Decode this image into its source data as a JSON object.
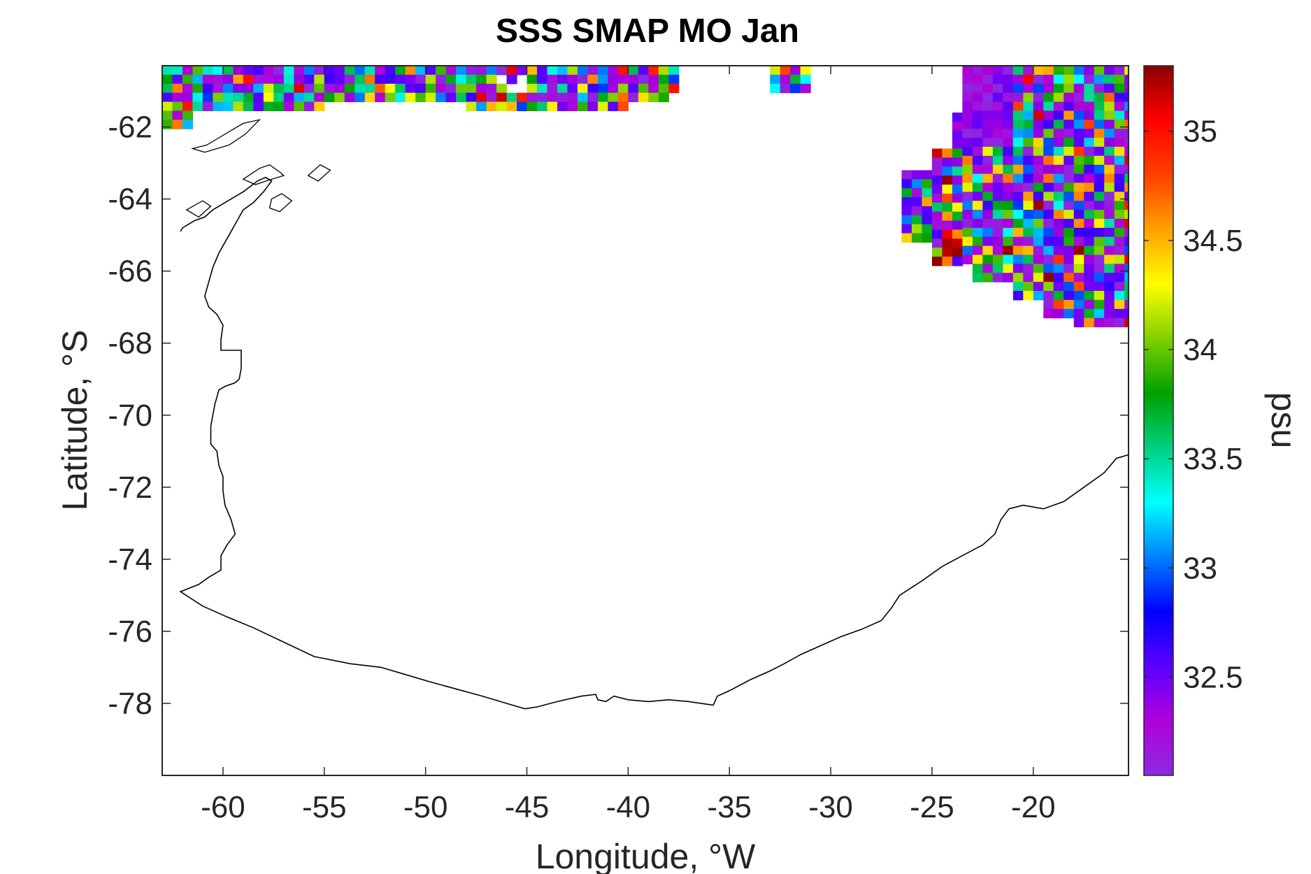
{
  "chart_data": {
    "type": "heatmap",
    "title": "SSS SMAP MO Jan",
    "xlabel": "Longitude, °W",
    "ylabel": "Latitude, °S",
    "colorbar_label": "psu",
    "xlim": [
      -63,
      -15.3
    ],
    "ylim": [
      -80,
      -60.3
    ],
    "x_ticks": [
      -60,
      -55,
      -50,
      -45,
      -40,
      -35,
      -30,
      -25,
      -20
    ],
    "x_tick_labels": [
      "-60",
      "-55",
      "-50",
      "-45",
      "-40",
      "-35",
      "-30",
      "-25",
      "-20"
    ],
    "y_ticks": [
      -62,
      -64,
      -66,
      -68,
      -70,
      -72,
      -74,
      -76,
      -78
    ],
    "y_tick_labels": [
      "-62",
      "-64",
      "-66",
      "-68",
      "-70",
      "-72",
      "-74",
      "-76",
      "-78"
    ],
    "clim": [
      32.05,
      35.3
    ],
    "c_ticks": [
      32.5,
      33,
      33.5,
      34,
      34.5,
      35
    ],
    "c_tick_labels": [
      "32.5",
      "33",
      "33.5",
      "34",
      "34.5",
      "35"
    ],
    "colormap": [
      "#8a2be2",
      "#b000d8",
      "#5a00ff",
      "#0000ff",
      "#0080ff",
      "#00ffff",
      "#00d080",
      "#00a000",
      "#80d000",
      "#ffff00",
      "#ffa000",
      "#ff4000",
      "#ff0000",
      "#8b0000"
    ],
    "grid": false,
    "coastline_color": "#000000",
    "data_regions": [
      {
        "name": "north-strip",
        "lon": [
          -63,
          -37.5
        ],
        "lat": [
          -62.2,
          -60.3
        ]
      },
      {
        "name": "east-patch",
        "lon": [
          -26.5,
          -15.3
        ],
        "lat": [
          -67.5,
          -60.3
        ]
      }
    ],
    "coastline": [
      [
        -62.1,
        -64.9
      ],
      [
        -62.0,
        -64.8
      ],
      [
        -61.4,
        -64.6
      ],
      [
        -60.9,
        -64.5
      ],
      [
        -60.5,
        -64.3
      ],
      [
        -60.2,
        -64.2
      ],
      [
        -59.6,
        -64.0
      ],
      [
        -59.0,
        -63.8
      ],
      [
        -58.3,
        -63.5
      ],
      [
        -57.9,
        -63.4
      ],
      [
        -57.6,
        -63.5
      ],
      [
        -58.0,
        -63.8
      ],
      [
        -58.5,
        -64.1
      ],
      [
        -59.0,
        -64.3
      ],
      [
        -59.3,
        -64.6
      ],
      [
        -59.7,
        -65.0
      ],
      [
        -60.2,
        -65.5
      ],
      [
        -60.5,
        -65.9
      ],
      [
        -60.7,
        -66.3
      ],
      [
        -60.9,
        -66.7
      ],
      [
        -60.7,
        -67.0
      ],
      [
        -60.3,
        -67.2
      ],
      [
        -60.0,
        -67.5
      ],
      [
        -60.1,
        -67.9
      ],
      [
        -60.1,
        -68.2
      ],
      [
        -59.1,
        -68.2
      ],
      [
        -59.1,
        -68.7
      ],
      [
        -59.2,
        -69.0
      ],
      [
        -59.4,
        -69.1
      ],
      [
        -59.9,
        -69.2
      ],
      [
        -60.2,
        -69.3
      ],
      [
        -60.4,
        -69.7
      ],
      [
        -60.6,
        -70.3
      ],
      [
        -60.6,
        -70.8
      ],
      [
        -60.3,
        -71.0
      ],
      [
        -60.2,
        -71.4
      ],
      [
        -60.0,
        -71.7
      ],
      [
        -60.0,
        -72.1
      ],
      [
        -59.9,
        -72.5
      ],
      [
        -59.6,
        -72.9
      ],
      [
        -59.4,
        -73.3
      ],
      [
        -59.8,
        -73.6
      ],
      [
        -60.1,
        -73.9
      ],
      [
        -60.1,
        -74.3
      ],
      [
        -60.7,
        -74.5
      ],
      [
        -61.2,
        -74.7
      ],
      [
        -62.1,
        -74.9
      ],
      [
        -61.0,
        -75.3
      ],
      [
        -59.8,
        -75.6
      ],
      [
        -58.5,
        -75.9
      ],
      [
        -57.0,
        -76.3
      ],
      [
        -55.5,
        -76.7
      ],
      [
        -53.7,
        -76.9
      ],
      [
        -52.2,
        -77.0
      ],
      [
        -51.0,
        -77.2
      ],
      [
        -49.8,
        -77.4
      ],
      [
        -48.5,
        -77.6
      ],
      [
        -47.2,
        -77.8
      ],
      [
        -46.0,
        -78.0
      ],
      [
        -45.1,
        -78.15
      ],
      [
        -44.5,
        -78.1
      ],
      [
        -43.5,
        -77.95
      ],
      [
        -42.3,
        -77.8
      ],
      [
        -41.6,
        -77.75
      ],
      [
        -41.5,
        -77.9
      ],
      [
        -41.1,
        -77.95
      ],
      [
        -40.7,
        -77.8
      ],
      [
        -40.0,
        -77.9
      ],
      [
        -39.0,
        -77.95
      ],
      [
        -38.0,
        -77.9
      ],
      [
        -37.0,
        -77.95
      ],
      [
        -35.8,
        -78.05
      ],
      [
        -35.6,
        -77.8
      ],
      [
        -35.0,
        -77.65
      ],
      [
        -34.0,
        -77.35
      ],
      [
        -33.0,
        -77.1
      ],
      [
        -32.3,
        -76.9
      ],
      [
        -31.5,
        -76.65
      ],
      [
        -30.5,
        -76.4
      ],
      [
        -29.5,
        -76.15
      ],
      [
        -28.5,
        -75.95
      ],
      [
        -27.5,
        -75.7
      ],
      [
        -27.0,
        -75.35
      ],
      [
        -26.6,
        -75.0
      ],
      [
        -25.5,
        -74.6
      ],
      [
        -24.5,
        -74.2
      ],
      [
        -23.5,
        -73.9
      ],
      [
        -22.5,
        -73.6
      ],
      [
        -21.9,
        -73.3
      ],
      [
        -21.6,
        -72.9
      ],
      [
        -21.2,
        -72.6
      ],
      [
        -20.5,
        -72.5
      ],
      [
        -19.5,
        -72.6
      ],
      [
        -18.5,
        -72.4
      ],
      [
        -17.5,
        -72.0
      ],
      [
        -16.5,
        -71.6
      ],
      [
        -15.9,
        -71.2
      ],
      [
        -15.3,
        -71.1
      ]
    ],
    "islands": [
      [
        [
          -61.5,
          -62.6
        ],
        [
          -60.8,
          -62.5
        ],
        [
          -60.2,
          -62.3
        ],
        [
          -59.0,
          -61.9
        ],
        [
          -58.2,
          -61.8
        ],
        [
          -58.9,
          -62.2
        ],
        [
          -59.7,
          -62.5
        ],
        [
          -60.9,
          -62.7
        ],
        [
          -61.5,
          -62.6
        ]
      ],
      [
        [
          -59.0,
          -63.45
        ],
        [
          -58.2,
          -63.15
        ],
        [
          -57.7,
          -63.05
        ],
        [
          -57.2,
          -63.25
        ],
        [
          -57.0,
          -63.35
        ],
        [
          -57.6,
          -63.45
        ],
        [
          -58.4,
          -63.6
        ],
        [
          -59.0,
          -63.45
        ]
      ],
      [
        [
          -61.8,
          -64.3
        ],
        [
          -61.0,
          -64.05
        ],
        [
          -60.6,
          -64.2
        ],
        [
          -61.2,
          -64.5
        ],
        [
          -61.8,
          -64.3
        ]
      ],
      [
        [
          -57.6,
          -64.0
        ],
        [
          -57.1,
          -63.85
        ],
        [
          -56.6,
          -64.05
        ],
        [
          -57.2,
          -64.35
        ],
        [
          -57.7,
          -64.25
        ],
        [
          -57.6,
          -64.0
        ]
      ],
      [
        [
          -55.8,
          -63.35
        ],
        [
          -55.2,
          -63.05
        ],
        [
          -54.7,
          -63.2
        ],
        [
          -55.3,
          -63.5
        ],
        [
          -55.8,
          -63.35
        ]
      ]
    ]
  }
}
